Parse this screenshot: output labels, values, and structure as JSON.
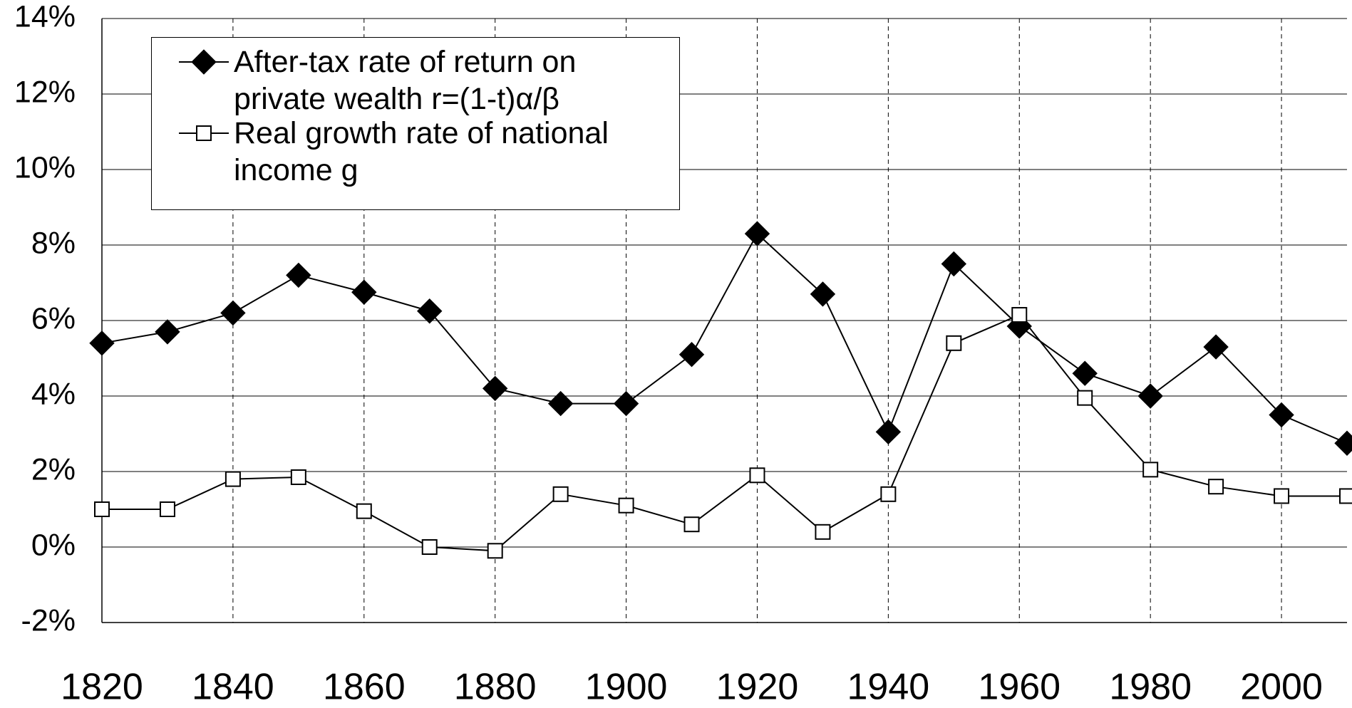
{
  "chart_data": {
    "type": "line",
    "x": [
      1820,
      1830,
      1840,
      1850,
      1860,
      1870,
      1880,
      1890,
      1900,
      1910,
      1920,
      1930,
      1940,
      1950,
      1960,
      1970,
      1980,
      1990,
      2000,
      2010
    ],
    "series": [
      {
        "name": "After-tax rate of return on private wealth r=(1-t)α/β",
        "color": "#000000",
        "marker": "diamond",
        "values": [
          5.4,
          5.7,
          6.2,
          7.2,
          6.75,
          6.25,
          4.2,
          3.8,
          3.8,
          5.1,
          8.3,
          6.7,
          3.05,
          7.5,
          5.85,
          4.6,
          4.0,
          5.3,
          3.5,
          2.75
        ]
      },
      {
        "name": "Real growth rate of national income g",
        "color": "#000000",
        "marker": "square",
        "values": [
          1.0,
          1.0,
          1.8,
          1.85,
          0.95,
          0.0,
          -0.1,
          1.4,
          1.1,
          0.6,
          1.9,
          0.4,
          1.4,
          5.4,
          6.15,
          3.95,
          2.05,
          1.6,
          1.35,
          1.35
        ]
      }
    ],
    "xlim": [
      1820,
      2010
    ],
    "xticks": [
      1820,
      1840,
      1860,
      1880,
      1900,
      1920,
      1940,
      1960,
      1980,
      2000
    ],
    "ylim": [
      -2,
      14
    ],
    "yticks": [
      {
        "value": -2,
        "label": "-2%"
      },
      {
        "value": 0,
        "label": "0%"
      },
      {
        "value": 2,
        "label": "2%"
      },
      {
        "value": 4,
        "label": "4%"
      },
      {
        "value": 6,
        "label": "6%"
      },
      {
        "value": 8,
        "label": "8%"
      },
      {
        "value": 10,
        "label": "10%"
      },
      {
        "value": 12,
        "label": "12%"
      },
      {
        "value": 14,
        "label": "14%"
      }
    ],
    "grid": true,
    "legend": "upper left"
  }
}
